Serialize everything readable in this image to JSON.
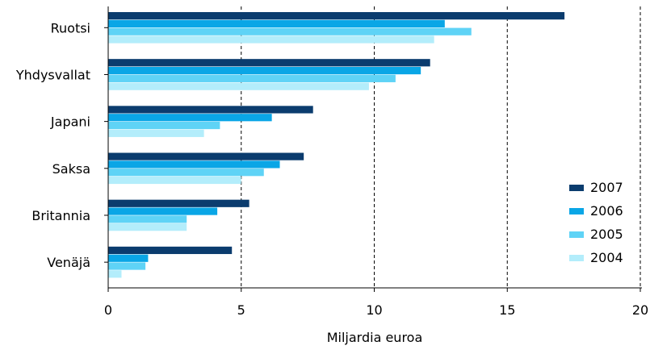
{
  "chart_data": {
    "type": "bar",
    "orientation": "horizontal",
    "categories": [
      "Ruotsi",
      "Yhdysvallat",
      "Japani",
      "Saksa",
      "Britannia",
      "Venäjä"
    ],
    "series": [
      {
        "name": "2007",
        "color": "#0b3c6e",
        "values": [
          17.15,
          12.1,
          7.7,
          7.35,
          5.3,
          4.65
        ]
      },
      {
        "name": "2006",
        "color": "#0aa6e6",
        "values": [
          12.65,
          11.75,
          6.15,
          6.45,
          4.1,
          1.5
        ]
      },
      {
        "name": "2005",
        "color": "#5fd3f6",
        "values": [
          13.65,
          10.8,
          4.2,
          5.85,
          2.95,
          1.4
        ]
      },
      {
        "name": "2004",
        "color": "#b3edfb",
        "values": [
          12.25,
          9.8,
          3.6,
          5.0,
          2.95,
          0.5
        ]
      }
    ],
    "xlabel": "Miljardia euroa",
    "xlim": [
      0,
      20
    ],
    "xticks": [
      0,
      5,
      10,
      15,
      20
    ],
    "grid": "vertical dashed",
    "legend": {
      "placement": "bottom-right",
      "entries": [
        "2007",
        "2006",
        "2005",
        "2004"
      ]
    }
  }
}
